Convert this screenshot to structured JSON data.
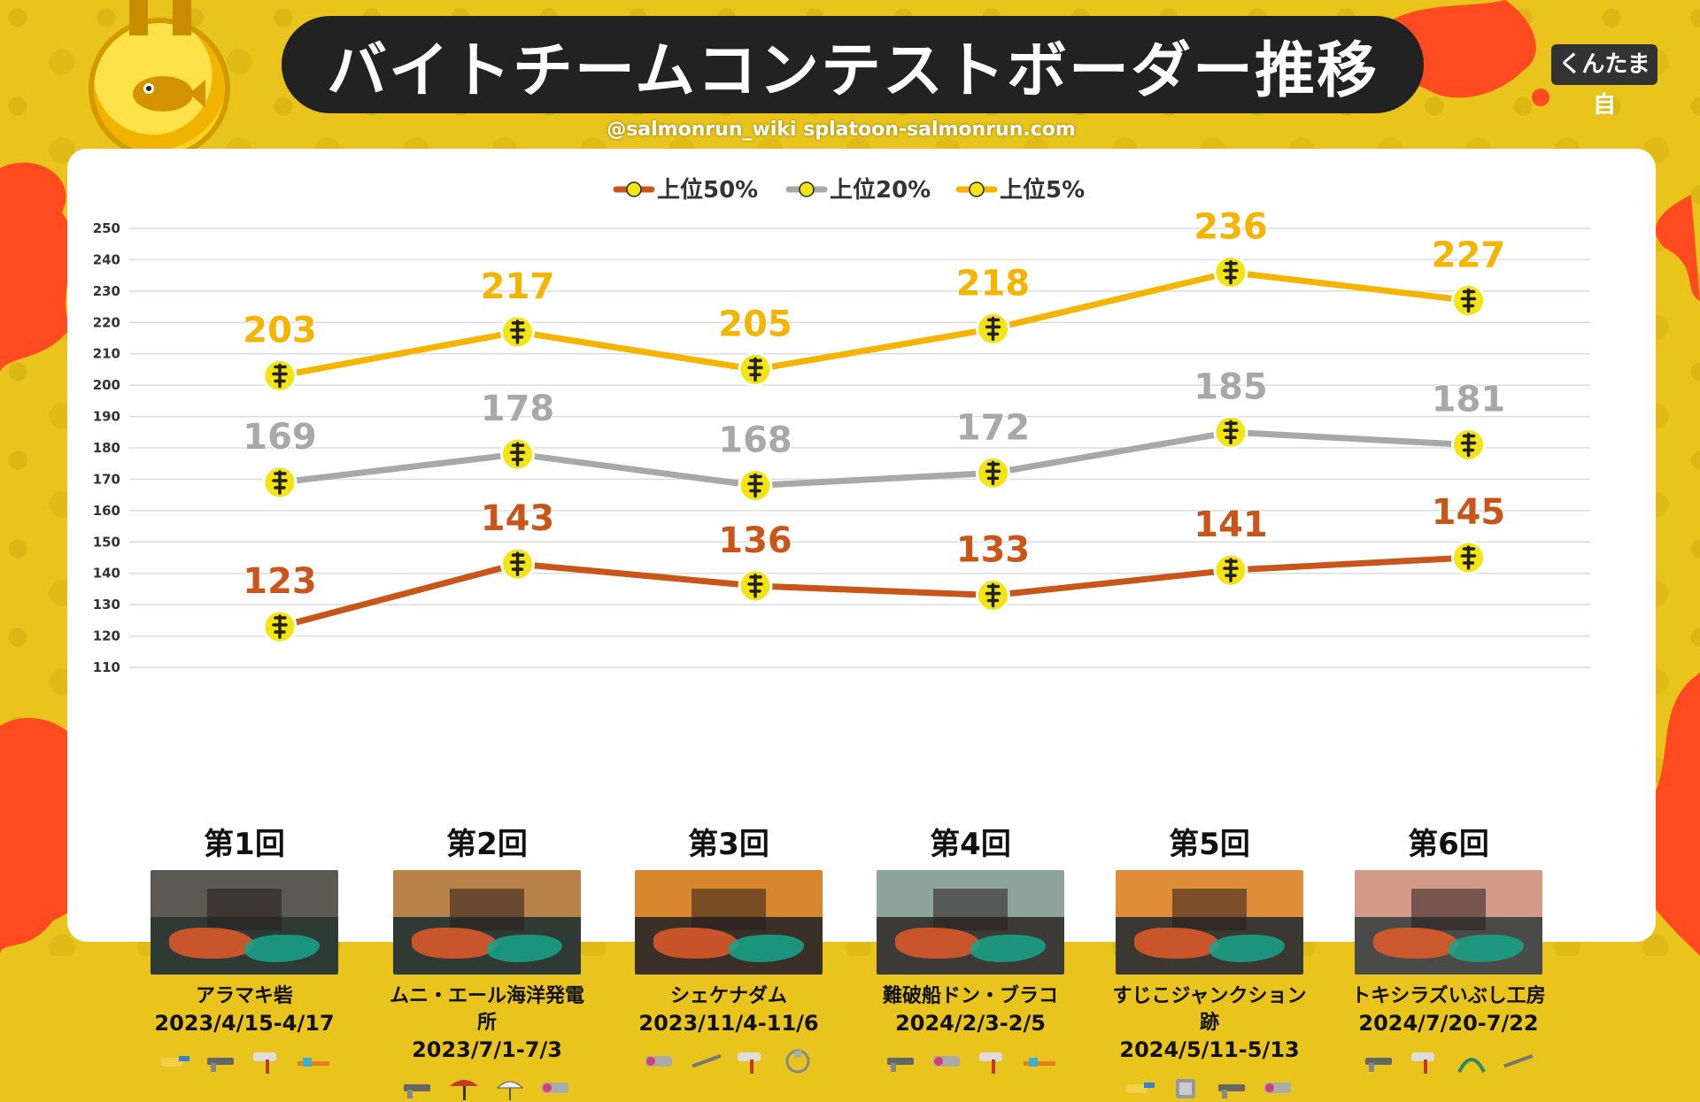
{
  "header": {
    "title": "バイトチームコンテストボーダー推移",
    "credit": "@salmonrun_wiki splatoon-salmonrun.com",
    "logo_text": "くんたま 自"
  },
  "colors": {
    "background": "#e9c41c",
    "top50": "#c8561a",
    "top20": "#a8a8a8",
    "top5": "#f5b400",
    "panel": "#ffffff",
    "title_bar": "#222222"
  },
  "chart_data": {
    "type": "line",
    "title": "",
    "xlabel": "",
    "ylabel": "",
    "ylim": [
      110,
      250
    ],
    "yticks": [
      110,
      120,
      130,
      140,
      150,
      160,
      170,
      180,
      190,
      200,
      210,
      220,
      230,
      240,
      250
    ],
    "grid": true,
    "legend_position": "top-center",
    "categories": [
      "第1回",
      "第2回",
      "第3回",
      "第4回",
      "第5回",
      "第6回"
    ],
    "series": [
      {
        "name": "上位50%",
        "color": "#c8561a",
        "values": [
          123,
          143,
          136,
          133,
          141,
          145
        ]
      },
      {
        "name": "上位20%",
        "color": "#a8a8a8",
        "values": [
          169,
          178,
          168,
          172,
          185,
          181
        ]
      },
      {
        "name": "上位5%",
        "color": "#f5b400",
        "values": [
          203,
          217,
          205,
          218,
          236,
          227
        ]
      }
    ]
  },
  "stages": [
    {
      "round": "第1回",
      "name": "アラマキ砦",
      "date": "2023/4/15-4/17",
      "thumb_colors": [
        "#5a5a52",
        "#2e3b35"
      ],
      "weapons": [
        "blaster-icon",
        "shooter-icon",
        "roller-icon",
        "charger-icon"
      ]
    },
    {
      "round": "第2回",
      "name": "ムニ・エール海洋発電所",
      "date": "2023/7/1-7/3",
      "thumb_colors": [
        "#b9824a",
        "#2f3a34"
      ],
      "weapons": [
        "shooter-icon",
        "brella-icon",
        "umbrella-icon",
        "splatling-icon"
      ]
    },
    {
      "round": "第3回",
      "name": "シェケナダム",
      "date": "2023/11/4-11/6",
      "thumb_colors": [
        "#d9872e",
        "#3a3028"
      ],
      "weapons": [
        "splatling-icon",
        "splatana-icon",
        "roller-icon",
        "dualies-icon"
      ]
    },
    {
      "round": "第4回",
      "name": "難破船ドン・ブラコ",
      "date": "2024/2/3-2/5",
      "thumb_colors": [
        "#8fa39d",
        "#3c3a36"
      ],
      "weapons": [
        "shooter-icon",
        "splatling-icon",
        "roller-icon",
        "charger-icon"
      ]
    },
    {
      "round": "第5回",
      "name": "すじこジャンクション跡",
      "date": "2024/5/11-5/13",
      "thumb_colors": [
        "#e08d3a",
        "#3a3830"
      ],
      "weapons": [
        "blaster-icon",
        "slosher-icon",
        "shooter-icon",
        "splatling-icon"
      ]
    },
    {
      "round": "第6回",
      "name": "トキシラズいぶし工房",
      "date": "2024/7/20-7/22",
      "thumb_colors": [
        "#d39a88",
        "#4a4a48"
      ],
      "weapons": [
        "shooter-icon",
        "roller-icon",
        "stringer-icon",
        "splatana-icon"
      ]
    }
  ]
}
